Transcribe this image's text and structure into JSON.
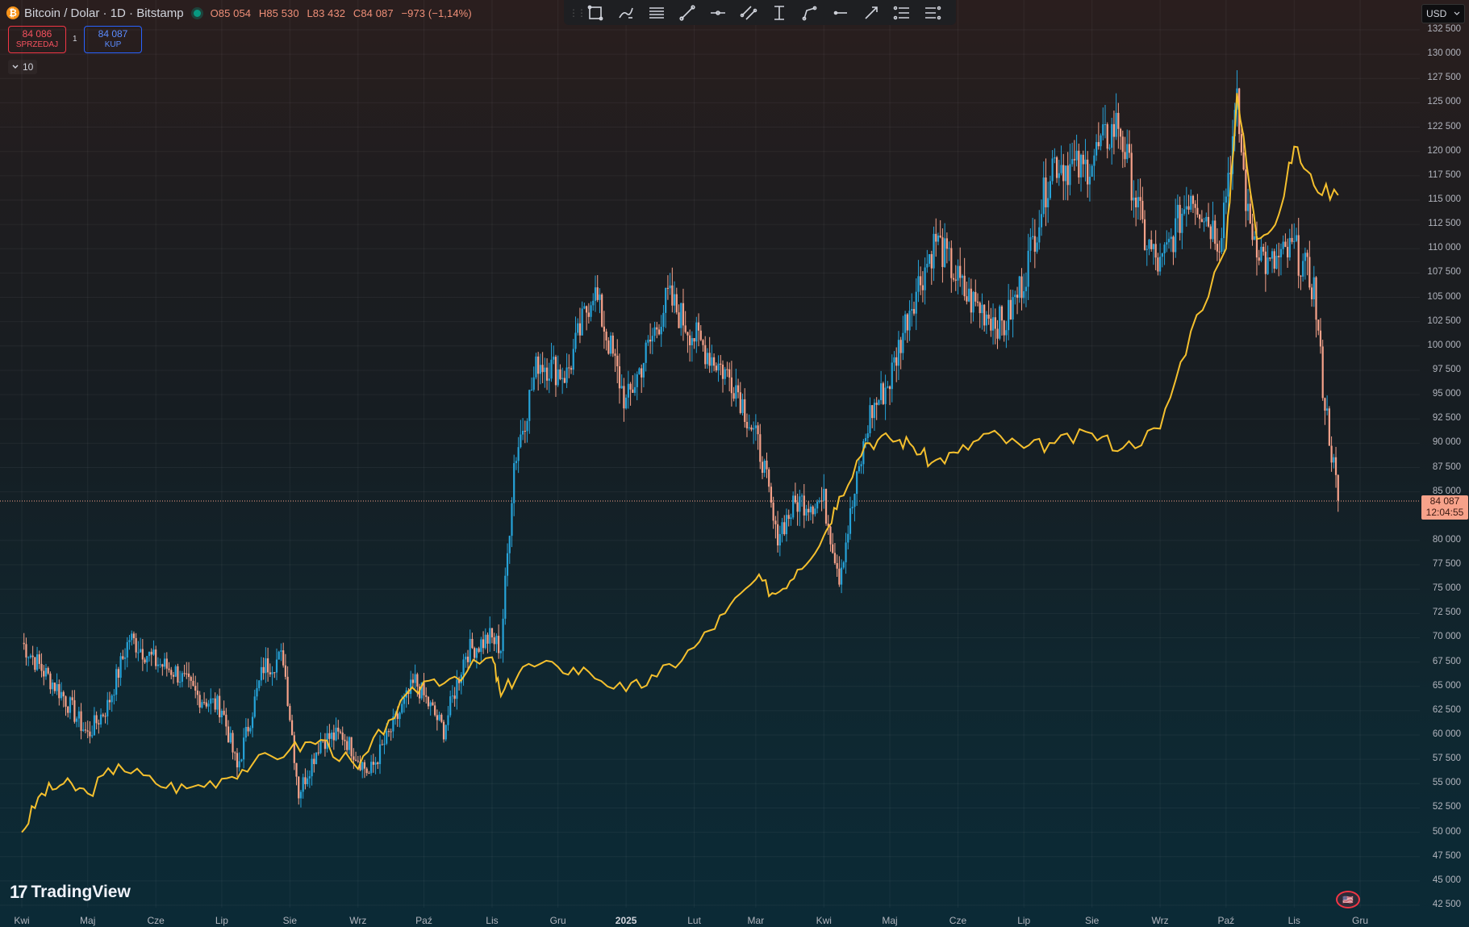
{
  "header": {
    "symbol_icon": "bitcoin-icon",
    "title": "Bitcoin / Dolar · 1D · Bitstamp",
    "ohlc": {
      "open": "O85 054",
      "high": "H85 530",
      "low": "L83 432",
      "close": "C84 087",
      "change": "−973 (−1,14%)"
    }
  },
  "trade": {
    "sell_price": "84 086",
    "sell_label": "SPRZEDAJ",
    "spread": "1",
    "buy_price": "84 087",
    "buy_label": "KUP"
  },
  "indicators_toggle": "10",
  "currency": "USD",
  "last_price": {
    "price": "84 087",
    "countdown": "12:04:55"
  },
  "branding": "TradingView",
  "toolbar_icons": [
    "rectangle-icon",
    "brush-icon",
    "fib-retracement-icon",
    "trend-line-icon",
    "horizontal-ray-icon",
    "parallel-channel-icon",
    "price-range-icon",
    "path-icon",
    "horizontal-line-icon",
    "arrow-marker-icon",
    "long-position-icon",
    "short-position-icon"
  ],
  "colors": {
    "up": "#26a3d9",
    "down": "#f7a28a",
    "overlay": "#f5c02e",
    "sell": "#f23645",
    "buy": "#2962ff"
  },
  "chart_data": {
    "type": "candlestick",
    "y_axis_ticks": [
      "132 500",
      "130 000",
      "127 500",
      "125 000",
      "122 500",
      "120 000",
      "117 500",
      "115 000",
      "112 500",
      "110 000",
      "107 500",
      "105 000",
      "102 500",
      "100 000",
      "97 500",
      "95 000",
      "92 500",
      "90 000",
      "87 500",
      "85 000",
      "80 000",
      "77 500",
      "75 000",
      "72 500",
      "70 000",
      "67 500",
      "65 000",
      "62 500",
      "60 000",
      "57 500",
      "55 000",
      "52 500",
      "50 000",
      "47 500",
      "45 000",
      "42 500"
    ],
    "x_axis_ticks": [
      "Kwi",
      "Maj",
      "Cze",
      "Lip",
      "Sie",
      "Wrz",
      "Paź",
      "Lis",
      "Gru",
      "2025",
      "Lut",
      "Mar",
      "Kwi",
      "Maj",
      "Cze",
      "Lip",
      "Sie",
      "Wrz",
      "Paź",
      "Lis",
      "Gru"
    ],
    "ylim": [
      42500,
      133500
    ],
    "price_series": {
      "x": [
        "2024-04-01",
        "2024-04-10",
        "2024-04-20",
        "2024-05-01",
        "2024-05-10",
        "2024-05-20",
        "2024-06-01",
        "2024-06-10",
        "2024-06-20",
        "2024-07-01",
        "2024-07-08",
        "2024-07-20",
        "2024-07-29",
        "2024-08-05",
        "2024-08-15",
        "2024-08-25",
        "2024-09-06",
        "2024-09-15",
        "2024-09-27",
        "2024-10-10",
        "2024-10-20",
        "2024-10-31",
        "2024-11-05",
        "2024-11-11",
        "2024-11-22",
        "2024-12-05",
        "2024-12-17",
        "2025-01-01",
        "2025-01-20",
        "2025-02-01",
        "2025-02-20",
        "2025-03-04",
        "2025-03-10",
        "2025-03-20",
        "2025-04-01",
        "2025-04-08",
        "2025-04-22",
        "2025-05-01",
        "2025-05-10",
        "2025-05-22",
        "2025-06-05",
        "2025-06-22",
        "2025-07-01",
        "2025-07-14",
        "2025-07-28",
        "2025-08-13",
        "2025-08-25",
        "2025-09-01",
        "2025-09-15",
        "2025-09-28",
        "2025-10-06",
        "2025-10-11",
        "2025-10-20",
        "2025-11-01",
        "2025-11-10",
        "2025-11-14",
        "2025-11-21"
      ],
      "y": [
        69500,
        66800,
        64000,
        60000,
        63000,
        70000,
        67500,
        66500,
        64000,
        62800,
        56500,
        67000,
        68000,
        54000,
        59500,
        60000,
        56000,
        60000,
        65500,
        60500,
        68500,
        70000,
        69000,
        88000,
        98500,
        97000,
        106000,
        94000,
        105000,
        101000,
        96000,
        88500,
        80500,
        84000,
        84000,
        76500,
        93000,
        96500,
        104000,
        111000,
        105000,
        102000,
        107000,
        119000,
        118000,
        123000,
        111000,
        108000,
        116000,
        111000,
        124500,
        113000,
        108000,
        110000,
        106000,
        96000,
        84100
      ]
    },
    "overlay_series": {
      "x": [
        "2024-04-01",
        "2024-04-10",
        "2024-04-20",
        "2024-05-01",
        "2024-05-15",
        "2024-06-01",
        "2024-06-15",
        "2024-07-01",
        "2024-07-15",
        "2024-08-01",
        "2024-08-15",
        "2024-09-01",
        "2024-09-15",
        "2024-10-01",
        "2024-10-15",
        "2024-11-01",
        "2024-11-05",
        "2024-11-15",
        "2024-12-01",
        "2024-12-15",
        "2025-01-01",
        "2025-01-15",
        "2025-02-01",
        "2025-02-15",
        "2025-03-01",
        "2025-03-10",
        "2025-03-20",
        "2025-04-01",
        "2025-04-08",
        "2025-04-20",
        "2025-05-01",
        "2025-05-10",
        "2025-05-20",
        "2025-06-01",
        "2025-06-15",
        "2025-07-01",
        "2025-07-15",
        "2025-08-01",
        "2025-08-15",
        "2025-09-01",
        "2025-09-15",
        "2025-10-01",
        "2025-10-06",
        "2025-10-15",
        "2025-10-25",
        "2025-11-01",
        "2025-11-10",
        "2025-11-21"
      ],
      "y": [
        50000,
        54000,
        55000,
        54000,
        57000,
        55000,
        54500,
        55500,
        57000,
        58500,
        59500,
        56500,
        61500,
        65500,
        66000,
        68000,
        64000,
        67000,
        67000,
        66500,
        64500,
        66000,
        69000,
        72500,
        76000,
        74500,
        77000,
        80500,
        84500,
        90000,
        90500,
        90000,
        88000,
        89000,
        91000,
        89500,
        90000,
        91000,
        89500,
        91500,
        101500,
        110000,
        126000,
        111000,
        113500,
        120500,
        116500,
        115500
      ]
    }
  }
}
